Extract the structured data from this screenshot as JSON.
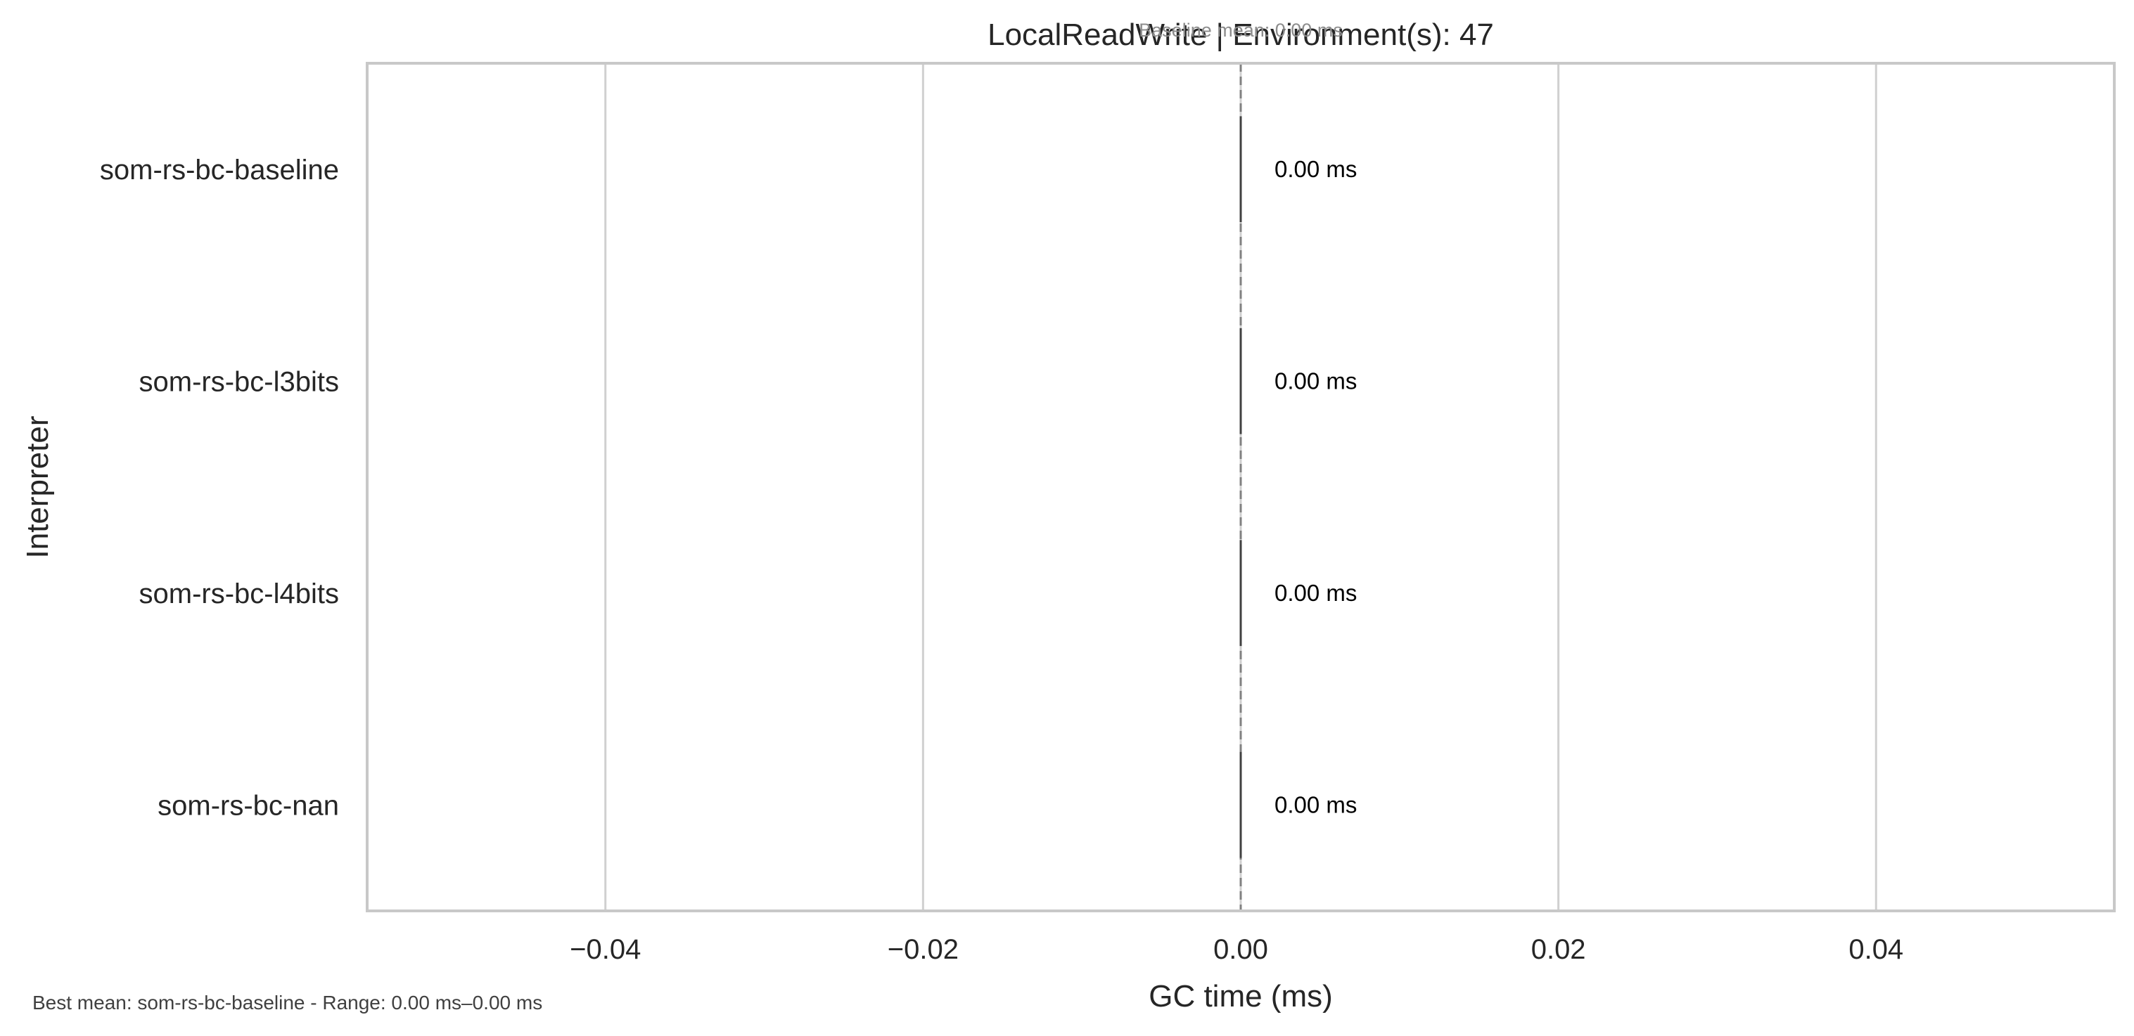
{
  "chart_data": {
    "type": "bar",
    "orientation": "horizontal",
    "title": "LocalReadWrite | Environment(s): 47",
    "subtitle": "Baseline mean: 0.00 ms",
    "xlabel": "GC time (ms)",
    "ylabel": "Interpreter",
    "categories": [
      "som-rs-bc-baseline",
      "som-rs-bc-l3bits",
      "som-rs-bc-l4bits",
      "som-rs-bc-nan"
    ],
    "values": [
      0.0,
      0.0,
      0.0,
      0.0
    ],
    "data_labels": [
      "0.00 ms",
      "0.00 ms",
      "0.00 ms",
      "0.00 ms"
    ],
    "xlim": [
      -0.055,
      0.055
    ],
    "xticks": [
      -0.04,
      -0.02,
      0.0,
      0.02,
      0.04
    ],
    "xtick_labels": [
      "−0.04",
      "−0.02",
      "0.00",
      "0.02",
      "0.04"
    ],
    "baseline_value": 0.0,
    "grid": true,
    "footnote": "Best mean: som-rs-bc-baseline - Range: 0.00 ms–0.00 ms",
    "colors": {
      "grid": "#d0d0d0",
      "spine": "#c8c8c8",
      "bar_edge": "#404040",
      "baseline": "#808080"
    }
  }
}
